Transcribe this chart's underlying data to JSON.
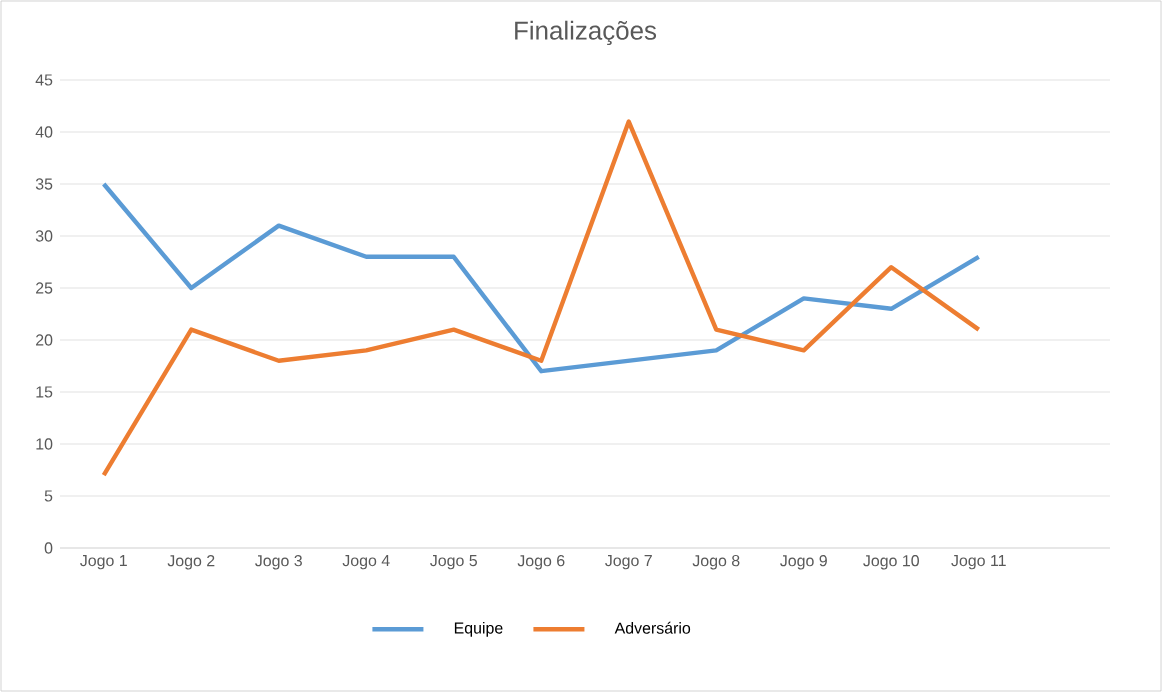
{
  "chart_data": {
    "type": "line",
    "title": "Finalizações",
    "categories": [
      "Jogo 1",
      "Jogo 2",
      "Jogo 3",
      "Jogo 4",
      "Jogo 5",
      "Jogo 6",
      "Jogo 7",
      "Jogo 8",
      "Jogo 9",
      "Jogo 10",
      "Jogo 11",
      null
    ],
    "series": [
      {
        "name": "Equipe",
        "color": "#5b9bd5",
        "values": [
          35,
          25,
          31,
          28,
          28,
          17,
          18,
          19,
          24,
          23,
          28,
          null
        ]
      },
      {
        "name": "Adversário",
        "color": "#ed7d31",
        "values": [
          7,
          21,
          18,
          19,
          21,
          18,
          41,
          21,
          19,
          27,
          21,
          null
        ]
      }
    ],
    "ylim": [
      0,
      45
    ],
    "yticks": [
      0,
      5,
      10,
      15,
      20,
      25,
      30,
      35,
      40,
      45
    ],
    "grid": "y",
    "legend": "bottom",
    "marker": "none",
    "line_style": "solid"
  }
}
